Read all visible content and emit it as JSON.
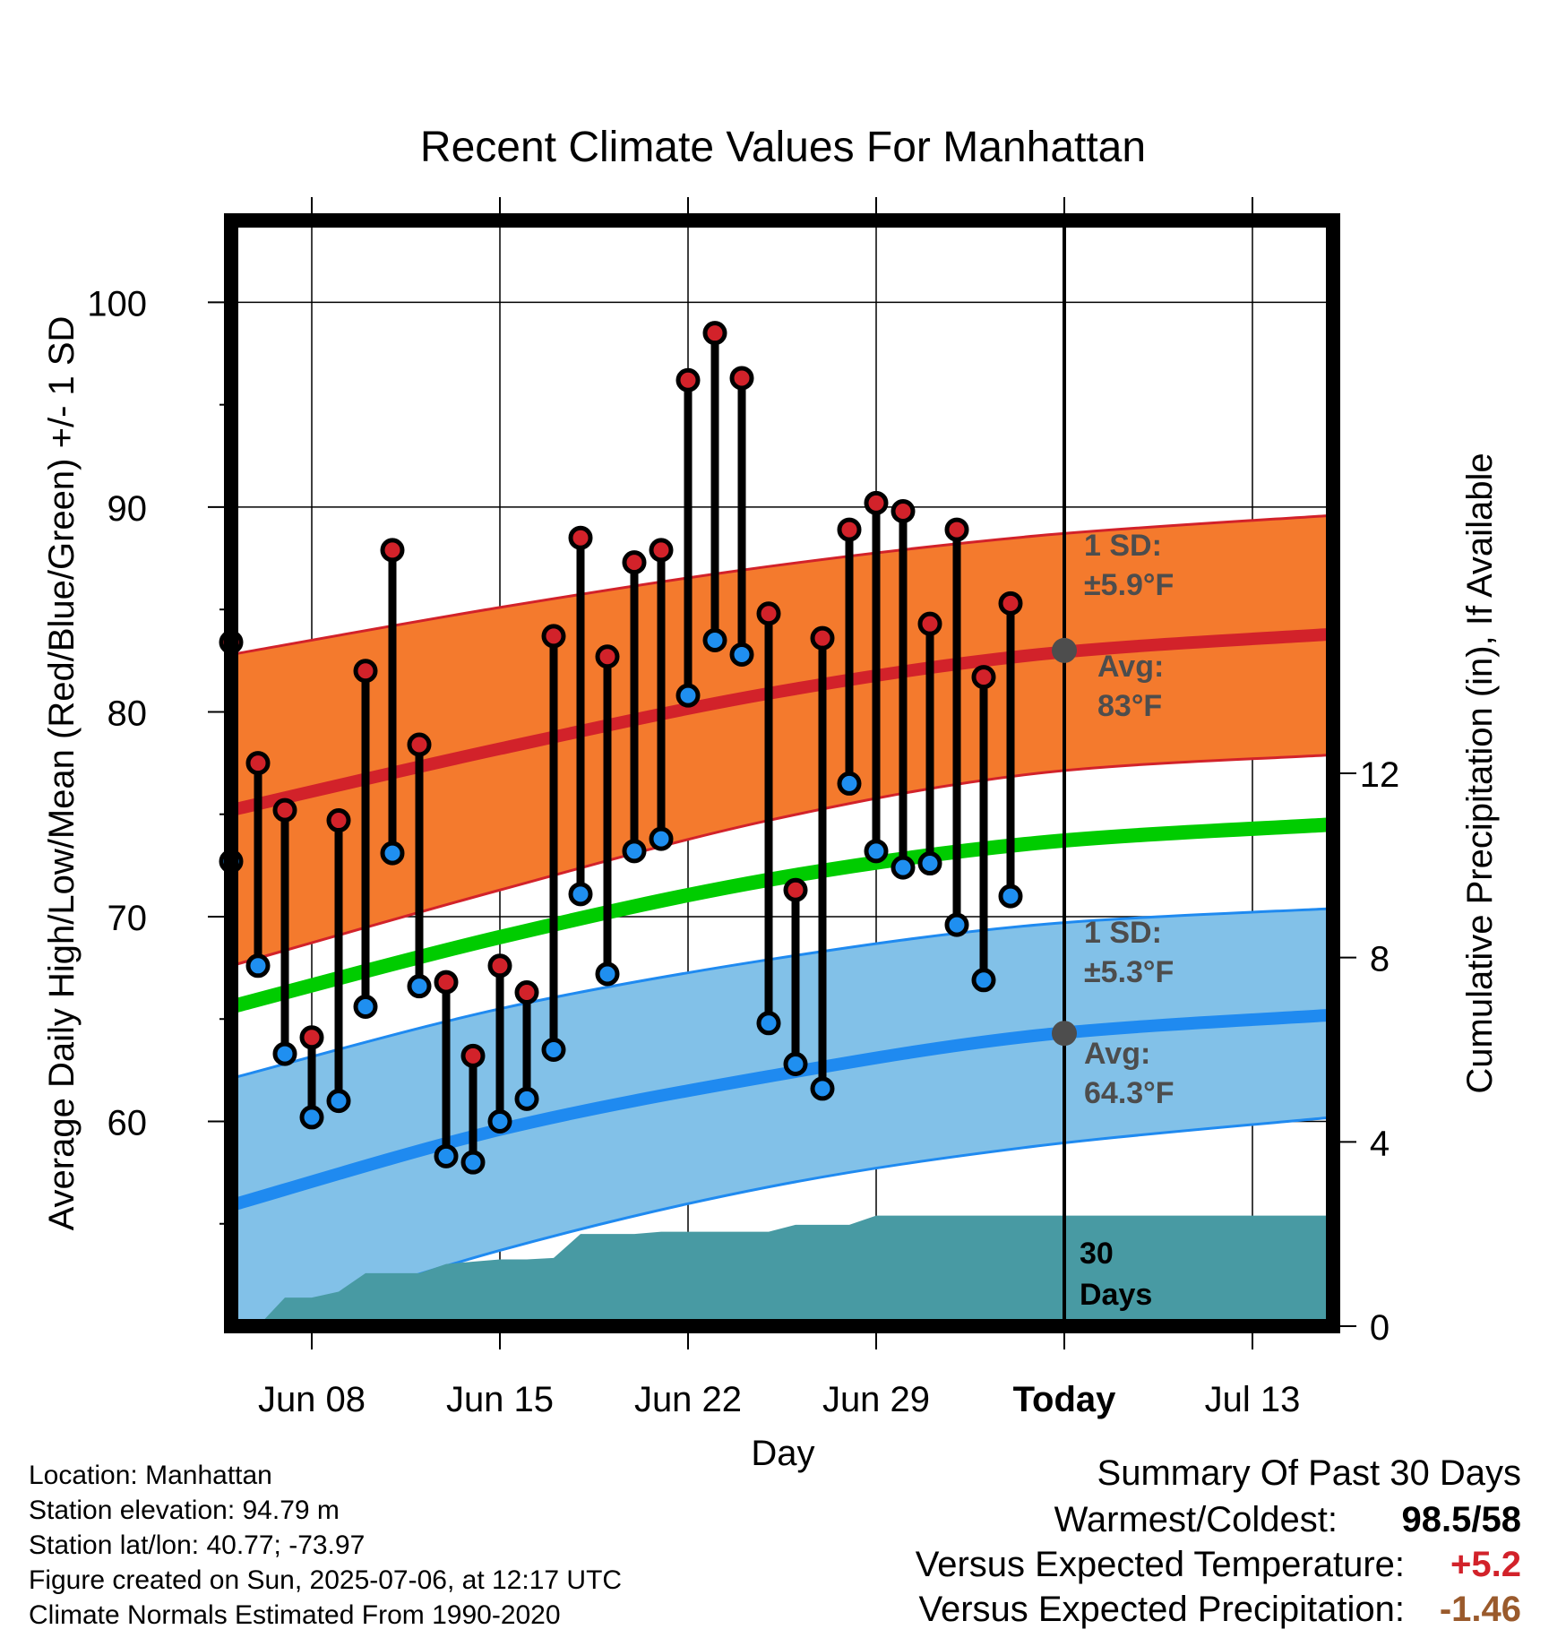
{
  "colors": {
    "high_band": "#f47a2d",
    "high_band_edge": "#d2222a",
    "high_avg_line": "#d2222a",
    "low_band": "#82c1e8",
    "low_band_edge": "#1f8af0",
    "low_avg_line": "#1f8af0",
    "mean_line": "#00cc00",
    "precip_fill": "#489aa3",
    "high_dot": "#d2222a",
    "low_dot": "#1f8ff0",
    "marker": "#4d4d4d",
    "annotation_text": "#4d4d4d",
    "temp_anomaly": "#d2222a",
    "precip_anomaly": "#9a5a2c"
  },
  "chart_data": {
    "type": "line",
    "title": "Recent Climate Values For Manhattan",
    "xlabel": "Day",
    "ylabel": "Average Daily High/Low/Mean (Red/Blue/Green) +/- 1 SD",
    "y2label": "Cumulative Precipitation (in), If Available",
    "x_start": "2025-06-05",
    "x_end": "2025-07-16",
    "ylim": [
      50,
      104
    ],
    "y2lim": [
      0,
      24
    ],
    "x_ticks": [
      {
        "date": "2025-06-08",
        "label": "Jun 08"
      },
      {
        "date": "2025-06-15",
        "label": "Jun 15"
      },
      {
        "date": "2025-06-22",
        "label": "Jun 22"
      },
      {
        "date": "2025-06-29",
        "label": "Jun 29"
      },
      {
        "date": "2025-07-06",
        "label": "Today"
      },
      {
        "date": "2025-07-13",
        "label": "Jul 13"
      }
    ],
    "y_ticks": [
      60,
      70,
      80,
      90,
      100
    ],
    "y2_ticks": [
      0,
      4,
      8,
      12
    ],
    "grid": true,
    "today": "2025-07-06",
    "normals": {
      "dates": [
        "2025-06-05",
        "2025-06-15",
        "2025-06-25",
        "2025-07-05",
        "2025-07-16"
      ],
      "high_avg": [
        75.2,
        78.2,
        80.9,
        82.8,
        83.8
      ],
      "high_sd_upper": [
        82.8,
        85.1,
        87.1,
        88.6,
        89.6
      ],
      "high_sd_lower": [
        67.6,
        71.3,
        74.7,
        77.0,
        77.9
      ],
      "mean_avg": [
        65.6,
        69.0,
        71.8,
        73.6,
        74.5
      ],
      "low_avg": [
        55.9,
        59.6,
        62.2,
        64.2,
        65.2
      ],
      "low_sd_upper": [
        62.1,
        65.5,
        67.9,
        69.6,
        70.4
      ],
      "low_sd_lower": [
        49.6,
        53.7,
        56.8,
        58.8,
        60.2
      ]
    },
    "series": [
      {
        "name": "High",
        "dates": [
          "2025-06-05",
          "2025-06-06",
          "2025-06-07",
          "2025-06-08",
          "2025-06-09",
          "2025-06-10",
          "2025-06-11",
          "2025-06-12",
          "2025-06-13",
          "2025-06-14",
          "2025-06-15",
          "2025-06-16",
          "2025-06-17",
          "2025-06-18",
          "2025-06-19",
          "2025-06-20",
          "2025-06-21",
          "2025-06-22",
          "2025-06-23",
          "2025-06-24",
          "2025-06-25",
          "2025-06-26",
          "2025-06-27",
          "2025-06-28",
          "2025-06-29",
          "2025-06-30",
          "2025-07-01",
          "2025-07-02",
          "2025-07-03",
          "2025-07-04",
          "2025-07-05"
        ],
        "values": [
          83.4,
          77.5,
          75.2,
          64.1,
          74.7,
          82.0,
          87.9,
          78.4,
          66.8,
          63.2,
          67.6,
          66.3,
          83.7,
          88.5,
          82.7,
          87.3,
          87.9,
          96.2,
          98.5,
          96.3,
          84.8,
          71.3,
          83.6,
          88.9,
          90.2,
          89.8,
          84.3,
          88.9,
          81.7,
          85.3,
          null
        ]
      },
      {
        "name": "Low",
        "dates": [
          "2025-06-05",
          "2025-06-06",
          "2025-06-07",
          "2025-06-08",
          "2025-06-09",
          "2025-06-10",
          "2025-06-11",
          "2025-06-12",
          "2025-06-13",
          "2025-06-14",
          "2025-06-15",
          "2025-06-16",
          "2025-06-17",
          "2025-06-18",
          "2025-06-19",
          "2025-06-20",
          "2025-06-21",
          "2025-06-22",
          "2025-06-23",
          "2025-06-24",
          "2025-06-25",
          "2025-06-26",
          "2025-06-27",
          "2025-06-28",
          "2025-06-29",
          "2025-06-30",
          "2025-07-01",
          "2025-07-02",
          "2025-07-03",
          "2025-07-04",
          "2025-07-05"
        ],
        "values": [
          72.7,
          67.6,
          63.3,
          60.2,
          61.0,
          65.6,
          73.1,
          66.6,
          58.3,
          58.0,
          60.0,
          61.1,
          63.5,
          71.1,
          67.2,
          73.2,
          73.8,
          80.8,
          83.5,
          82.8,
          64.8,
          62.8,
          61.6,
          76.5,
          73.2,
          72.4,
          72.6,
          69.6,
          66.9,
          71.0,
          null
        ]
      }
    ],
    "precip": {
      "dates": [
        "2025-06-05",
        "2025-06-06",
        "2025-06-07",
        "2025-06-08",
        "2025-06-09",
        "2025-06-10",
        "2025-06-11",
        "2025-06-12",
        "2025-06-13",
        "2025-06-14",
        "2025-06-15",
        "2025-06-16",
        "2025-06-17",
        "2025-06-18",
        "2025-06-19",
        "2025-06-20",
        "2025-06-21",
        "2025-06-22",
        "2025-06-23",
        "2025-06-24",
        "2025-06-25",
        "2025-06-26",
        "2025-06-27",
        "2025-06-28",
        "2025-06-29",
        "2025-06-30",
        "2025-07-01",
        "2025-07-16"
      ],
      "values": [
        0,
        0,
        0.62,
        0.62,
        0.75,
        1.15,
        1.15,
        1.15,
        1.35,
        1.4,
        1.45,
        1.45,
        1.48,
        2.0,
        2.0,
        2.0,
        2.05,
        2.05,
        2.05,
        2.05,
        2.05,
        2.2,
        2.2,
        2.2,
        2.4,
        2.4,
        2.4,
        2.4
      ]
    },
    "annotations": {
      "high_sd_label": "1 SD:",
      "high_sd_value": "±5.9°F",
      "high_avg_label": "Avg:",
      "high_avg_value": "83°F",
      "high_avg_marker": 83,
      "low_sd_label": "1 SD:",
      "low_sd_value": "±5.3°F",
      "low_avg_label": "Avg:",
      "low_avg_value": "64.3°F",
      "low_avg_marker": 64.3,
      "days_line1": "30",
      "days_line2": "Days"
    }
  },
  "footer": {
    "location": "Location: Manhattan",
    "elevation": "Station elevation: 94.79 m",
    "latlon": "Station lat/lon: 40.77; -73.97",
    "created": "Figure created on Sun, 2025-07-06, at 12:17 UTC",
    "normals": "Climate Normals Estimated From 1990-2020"
  },
  "summary": {
    "title": "Summary Of Past 30 Days",
    "warm_cold_label": "Warmest/Coldest:",
    "warm_cold_value": "98.5/58",
    "temp_label": "Versus Expected Temperature:",
    "temp_value": "+5.2",
    "precip_label": "Versus Expected Precipitation:",
    "precip_value": "-1.46"
  }
}
